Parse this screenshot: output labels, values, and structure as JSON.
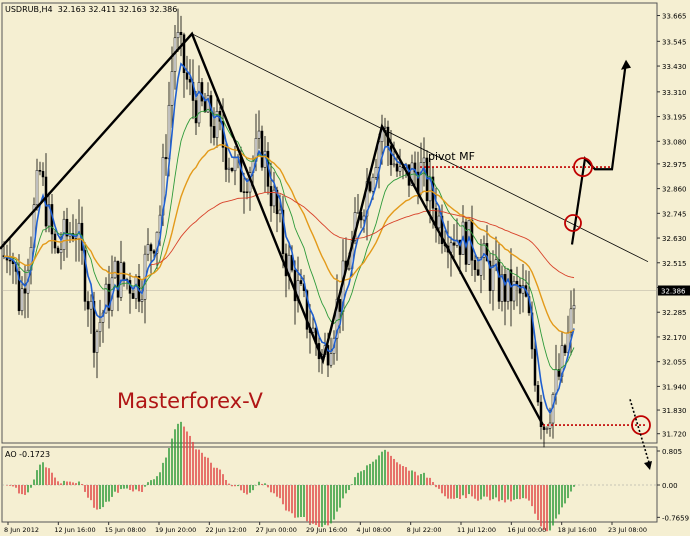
{
  "chart_data": {
    "type": "candlestick",
    "header": {
      "symbol": "USDRUB,H4",
      "ohlc": "32.163 32.411 32.163 32.386"
    },
    "brand": "Masterforex-V",
    "annotation": "pivot MF",
    "current_price": "32.386",
    "y_ticks": [
      "33.665",
      "33.545",
      "33.430",
      "33.310",
      "33.195",
      "33.080",
      "32.975",
      "32.860",
      "32.745",
      "32.630",
      "32.515",
      "32.400",
      "32.285",
      "32.170",
      "32.055",
      "31.940",
      "31.830",
      "31.720"
    ],
    "y_range": [
      31.7,
      33.7
    ],
    "x_ticks": [
      "8 Jun 2012",
      "12 Jun 16:00",
      "15 Jun 08:00",
      "19 Jun 20:00",
      "22 Jun 12:00",
      "27 Jun 00:00",
      "29 Jun 16:00",
      "4 Jul 08:00",
      "8 Jul 22:00",
      "11 Jul 12:00",
      "16 Jul 00:00",
      "18 Jul 16:00",
      "23 Jul 08:00"
    ],
    "ao": {
      "label": "AO -0.1723",
      "y_ticks": [
        "0.805",
        "0.00",
        "-0.7659"
      ]
    },
    "colors": {
      "background": "#f5efd2",
      "ema_fast": "#1f5fd0",
      "ema_mid": "#2e9a3a",
      "ema_slow": "#e39a1a",
      "ema_long": "#d8422a",
      "ao_up": "#2e9a3a",
      "ao_down": "#e04848",
      "pivot": "#c00000",
      "brand": "#b01515"
    },
    "zigzag_levels": [
      32.52,
      33.58,
      32.06,
      33.15,
      31.76
    ],
    "resistance_line": {
      "from": 33.58,
      "to": 32.52
    },
    "pivot_level": 32.96,
    "low_level": 31.76
  }
}
